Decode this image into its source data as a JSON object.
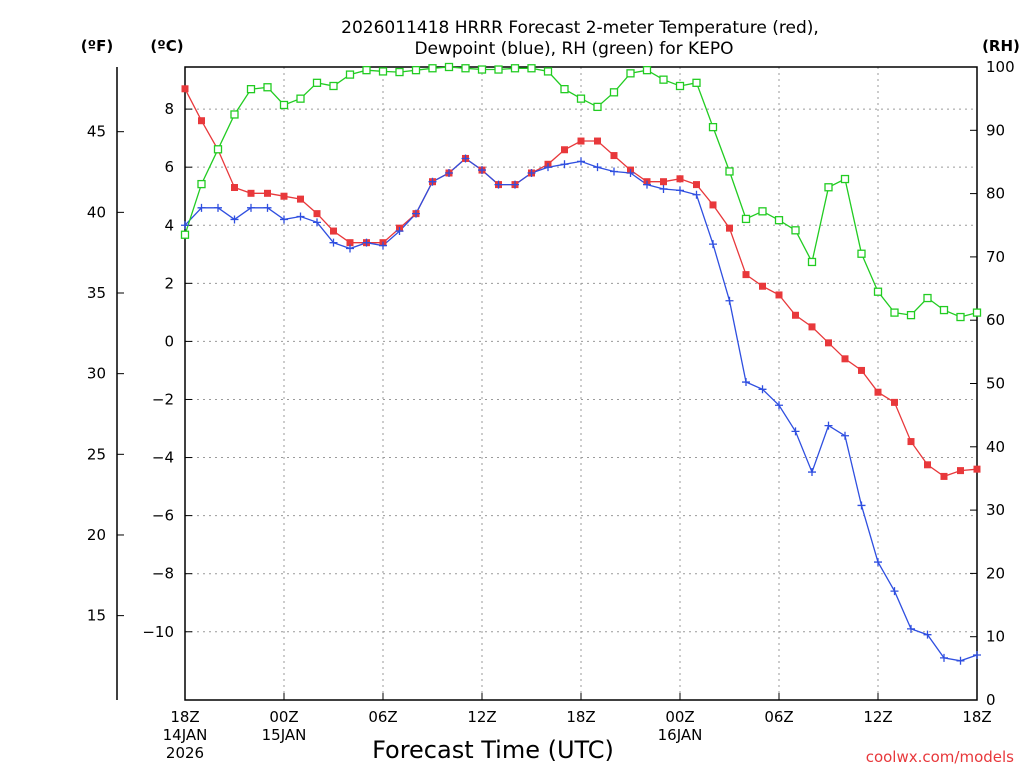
{
  "chart_data": {
    "type": "line",
    "title_line1": "2026011418 HRRR Forecast 2-meter Temperature (red),",
    "title_line2": "Dewpoint (blue), RH (green) for KEPO",
    "xlabel": "Forecast Time (UTC)",
    "credit": "coolwx.com/models",
    "unit_left_f": "(ºF)",
    "unit_left_c": "(ºC)",
    "unit_right_rh": "(RH)",
    "x_hours": [
      0,
      1,
      2,
      3,
      4,
      5,
      6,
      7,
      8,
      9,
      10,
      11,
      12,
      13,
      14,
      15,
      16,
      17,
      18,
      19,
      20,
      21,
      22,
      23,
      24,
      25,
      26,
      27,
      28,
      29,
      30,
      31,
      32,
      33,
      34,
      35,
      36,
      37,
      38,
      39,
      40,
      41,
      42,
      43,
      44,
      45,
      46,
      47,
      48
    ],
    "x_range_hours": [
      0,
      48
    ],
    "x_ticks": [
      {
        "hour": 0,
        "label": "18Z",
        "sub1": "14JAN",
        "sub2": "2026"
      },
      {
        "hour": 6,
        "label": "00Z",
        "sub1": "15JAN",
        "sub2": ""
      },
      {
        "hour": 12,
        "label": "06Z",
        "sub1": "",
        "sub2": ""
      },
      {
        "hour": 18,
        "label": "12Z",
        "sub1": "",
        "sub2": ""
      },
      {
        "hour": 24,
        "label": "18Z",
        "sub1": "",
        "sub2": ""
      },
      {
        "hour": 30,
        "label": "00Z",
        "sub1": "16JAN",
        "sub2": ""
      },
      {
        "hour": 36,
        "label": "06Z",
        "sub1": "",
        "sub2": ""
      },
      {
        "hour": 42,
        "label": "12Z",
        "sub1": "",
        "sub2": ""
      },
      {
        "hour": 48,
        "label": "18Z",
        "sub1": "",
        "sub2": ""
      }
    ],
    "celsius_axis": {
      "range": [
        -12.35,
        9.45
      ],
      "ticks": [
        "8",
        "6",
        "4",
        "2",
        "0",
        "−2",
        "−4",
        "−6",
        "−8",
        "−10"
      ],
      "tick_values": [
        8,
        6,
        4,
        2,
        0,
        -2,
        -4,
        -6,
        -8,
        -10
      ]
    },
    "fahrenheit_axis": {
      "ticks": [
        "45",
        "40",
        "35",
        "30",
        "25",
        "20",
        "15"
      ],
      "tick_values": [
        45,
        40,
        35,
        30,
        25,
        20,
        15
      ]
    },
    "rh_axis": {
      "range": [
        0,
        100
      ],
      "ticks": [
        "100",
        "90",
        "80",
        "70",
        "60",
        "50",
        "40",
        "30",
        "20",
        "10",
        "0"
      ],
      "tick_values": [
        100,
        90,
        80,
        70,
        60,
        50,
        40,
        30,
        20,
        10,
        0
      ]
    },
    "series": [
      {
        "name": "2-meter Temperature",
        "units": "C",
        "axis": "left",
        "color": "#e8383b",
        "marker": "filled-square",
        "values": [
          8.7,
          7.6,
          6.6,
          5.3,
          5.1,
          5.1,
          5.0,
          4.9,
          4.4,
          3.8,
          3.4,
          3.4,
          3.4,
          3.9,
          4.4,
          5.5,
          5.8,
          6.3,
          5.9,
          5.4,
          5.4,
          5.8,
          6.1,
          6.6,
          6.9,
          6.9,
          6.4,
          5.9,
          5.5,
          5.5,
          5.6,
          5.4,
          4.7,
          3.9,
          2.3,
          1.9,
          1.6,
          0.9,
          0.5,
          -0.05,
          -0.6,
          -1.0,
          -1.75,
          -2.1,
          -3.45,
          -4.25,
          -4.65,
          -4.45,
          -4.4
        ]
      },
      {
        "name": "Dewpoint",
        "units": "C",
        "axis": "left",
        "color": "#2f4fe0",
        "marker": "plus",
        "values": [
          4.0,
          4.6,
          4.6,
          4.2,
          4.6,
          4.6,
          4.2,
          4.3,
          4.1,
          3.4,
          3.2,
          3.4,
          3.3,
          3.8,
          4.4,
          5.5,
          5.8,
          6.3,
          5.9,
          5.4,
          5.4,
          5.8,
          6.0,
          6.1,
          6.2,
          6.0,
          5.85,
          5.8,
          5.4,
          5.25,
          5.2,
          5.05,
          3.35,
          1.4,
          -1.4,
          -1.65,
          -2.2,
          -3.1,
          -4.5,
          -2.9,
          -3.25,
          -5.65,
          -7.6,
          -8.6,
          -9.9,
          -10.1,
          -10.9,
          -11.0,
          -10.8
        ]
      },
      {
        "name": "RH",
        "units": "%",
        "axis": "right",
        "color": "#22cc22",
        "marker": "open-square",
        "values": [
          73.5,
          81.5,
          87.0,
          92.5,
          96.5,
          96.8,
          94.0,
          95.0,
          97.5,
          97.0,
          98.8,
          99.5,
          99.3,
          99.2,
          99.5,
          99.8,
          100.0,
          99.8,
          99.6,
          99.6,
          99.8,
          99.8,
          99.3,
          96.5,
          95.0,
          93.7,
          96.0,
          99.0,
          99.5,
          98.0,
          97.0,
          97.5,
          90.5,
          83.5,
          76.0,
          77.2,
          75.8,
          74.2,
          69.2,
          81.0,
          82.3,
          70.5,
          64.5,
          61.2,
          60.8,
          63.5,
          61.6,
          60.5,
          61.2
        ]
      }
    ]
  }
}
